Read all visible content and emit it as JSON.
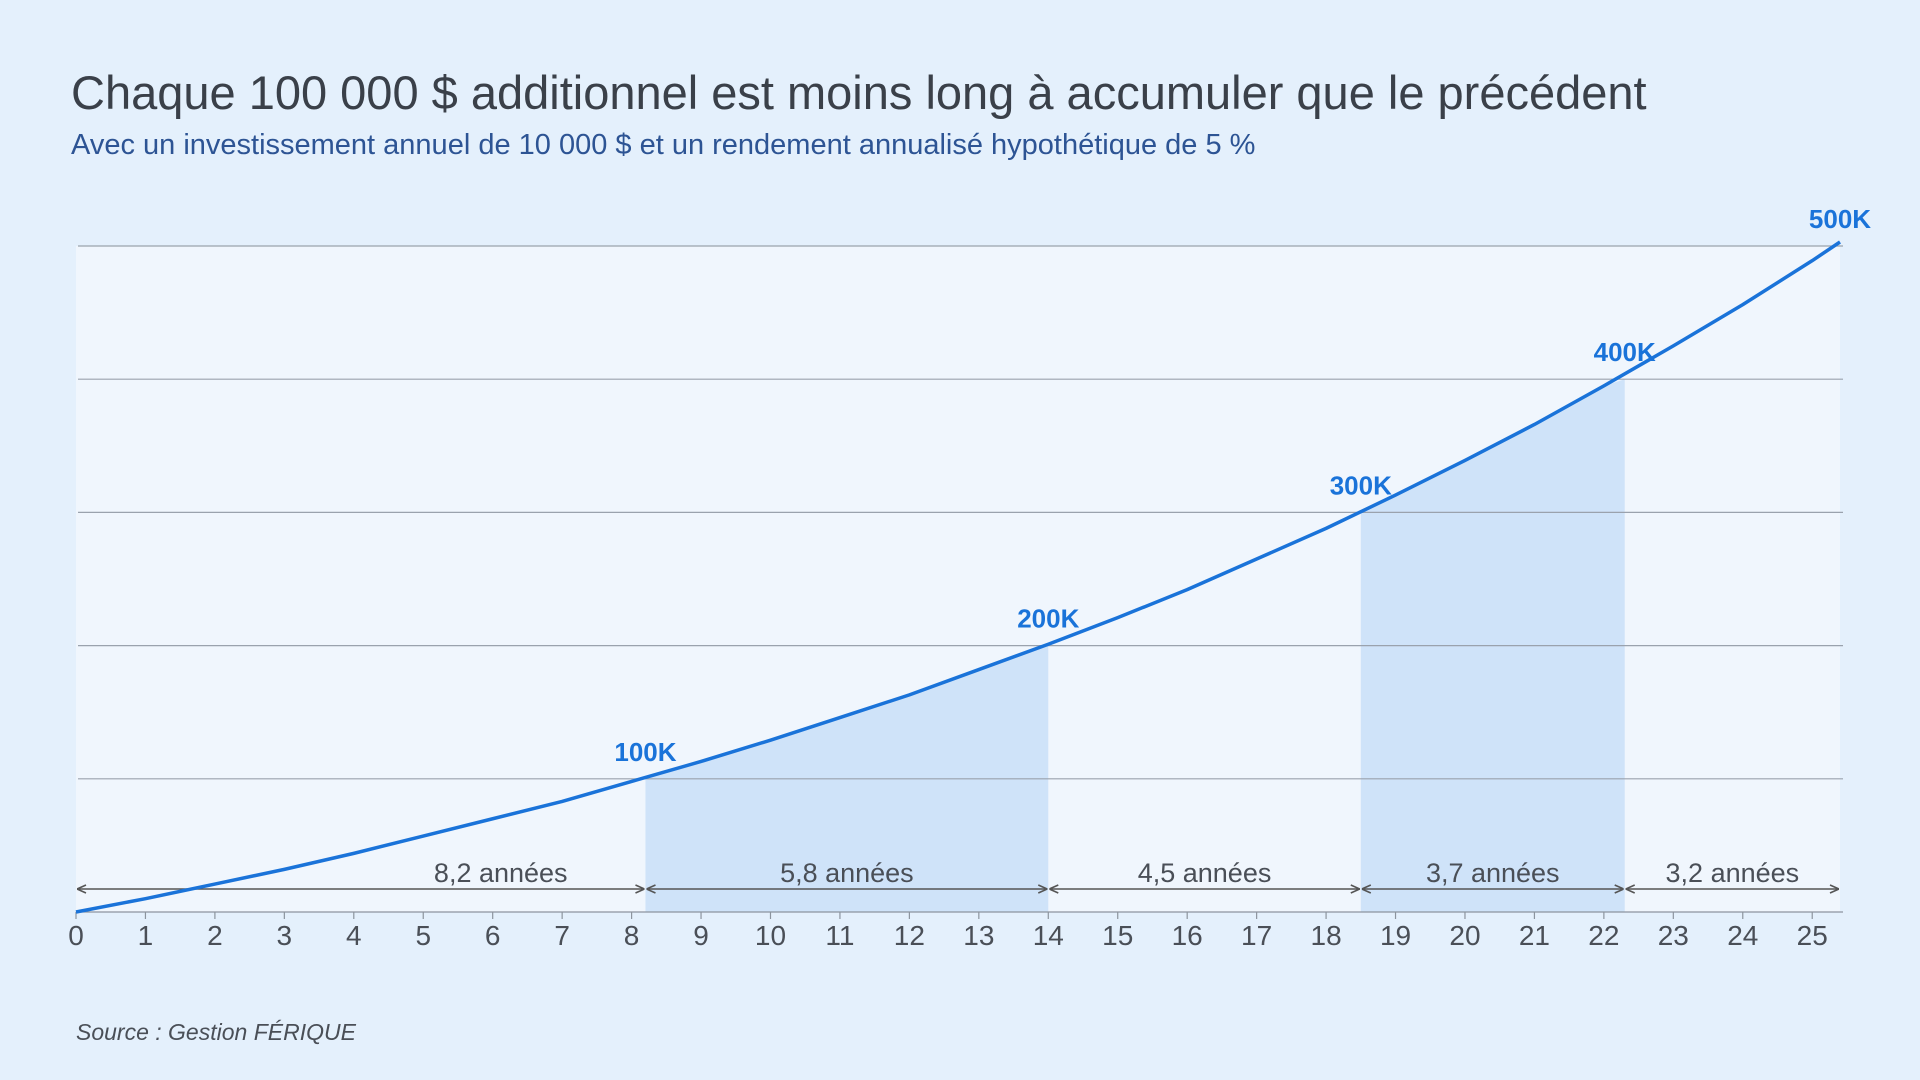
{
  "chart_data": {
    "type": "line",
    "title": "Chaque 100 000 $ additionnel est moins long à accumuler que le précédent",
    "subtitle": "Avec un investissement annuel de 10 000 $ et un rendement annualisé hypothétique de 5 %",
    "source": "Source : Gestion FÉRIQUE",
    "x": [
      0,
      1,
      2,
      3,
      4,
      5,
      6,
      7,
      8,
      9,
      10,
      11,
      12,
      13,
      14,
      15,
      16,
      17,
      18,
      19,
      20,
      21,
      22,
      23,
      24,
      25,
      25.4
    ],
    "series": [
      {
        "color": "#1a73d9",
        "values": [
          0,
          10000,
          21000,
          32000,
          44000,
          57000,
          70000,
          83000,
          98000,
          113000,
          129000,
          146000,
          163000,
          182000,
          201000,
          221000,
          242000,
          265000,
          288000,
          313000,
          339000,
          366000,
          395000,
          425000,
          456000,
          489000,
          503000
        ]
      }
    ],
    "xlim": [
      0,
      25.4
    ],
    "xticks": [
      0,
      1,
      2,
      3,
      4,
      5,
      6,
      7,
      8,
      9,
      10,
      11,
      12,
      13,
      14,
      15,
      16,
      17,
      18,
      19,
      20,
      21,
      22,
      23,
      24,
      25
    ],
    "ylim": [
      0,
      500000
    ],
    "yticks": [
      0,
      100000,
      200000,
      300000,
      400000,
      500000
    ],
    "grid": true,
    "milestones": [
      {
        "x": 8.2,
        "value": 100000,
        "label": "100K"
      },
      {
        "x": 14,
        "value": 200000,
        "label": "200K"
      },
      {
        "x": 18.5,
        "value": 300000,
        "label": "300K"
      },
      {
        "x": 22.3,
        "value": 400000,
        "label": "400K"
      },
      {
        "x": 25.4,
        "value": 500000,
        "label": "500K"
      }
    ],
    "intervals": [
      {
        "from": 0,
        "to": 8.2,
        "label": "8,2 années",
        "shaded": false
      },
      {
        "from": 8.2,
        "to": 14,
        "label": "5,8 années",
        "shaded": true
      },
      {
        "from": 14,
        "to": 18.5,
        "label": "4,5 années",
        "shaded": false
      },
      {
        "from": 18.5,
        "to": 22.3,
        "label": "3,7 années",
        "shaded": true
      },
      {
        "from": 22.3,
        "to": 25.4,
        "label": "3,2 années",
        "shaded": false
      }
    ]
  }
}
